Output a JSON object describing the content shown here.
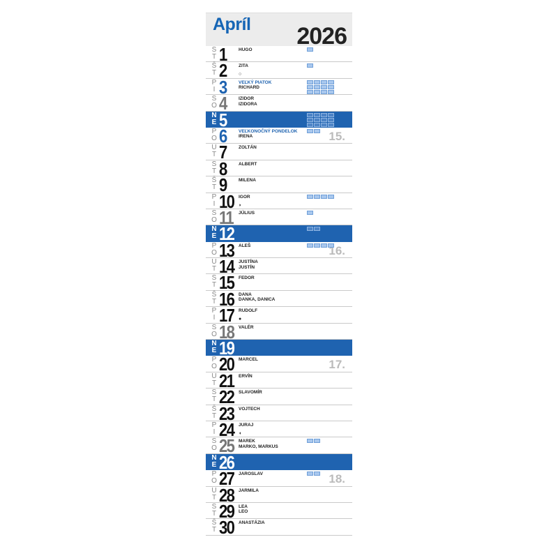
{
  "header": {
    "month": "Apríl",
    "year": "2026"
  },
  "colors": {
    "accent": "#1f63b0",
    "sunday_bg": "#1f63b0"
  },
  "days": [
    {
      "n": "1",
      "d": "ST",
      "names": [
        "HUGO"
      ],
      "badges": 1
    },
    {
      "n": "2",
      "d": "ŠT",
      "names": [
        "ZITA"
      ],
      "moon": "○",
      "badges": 1
    },
    {
      "n": "3",
      "d": "PI",
      "names": [
        "VEĽKÝ PIATOK",
        "RICHARD"
      ],
      "hol": true,
      "badges": 14
    },
    {
      "n": "4",
      "d": "SO",
      "names": [
        "IZIDOR",
        "IZIDORA"
      ]
    },
    {
      "n": "5",
      "d": "NE",
      "names": [],
      "badges": 12
    },
    {
      "n": "6",
      "d": "PO",
      "names": [
        "VEĽKONOČNÝ PONDELOK",
        "IRENA"
      ],
      "hol": true,
      "week": "15.",
      "badges": 2
    },
    {
      "n": "7",
      "d": "UT",
      "names": [
        "ZOLTÁN"
      ]
    },
    {
      "n": "8",
      "d": "ST",
      "names": [
        "ALBERT"
      ]
    },
    {
      "n": "9",
      "d": "ŠT",
      "names": [
        "MILENA"
      ]
    },
    {
      "n": "10",
      "d": "PI",
      "names": [
        "IGOR"
      ],
      "moon": "◗",
      "badges": 4
    },
    {
      "n": "11",
      "d": "SO",
      "names": [
        "JÚLIUS"
      ],
      "badges": 1
    },
    {
      "n": "12",
      "d": "NE",
      "names": [],
      "badges": 2
    },
    {
      "n": "13",
      "d": "PO",
      "names": [
        "ALEŠ"
      ],
      "week": "16.",
      "badges": 4
    },
    {
      "n": "14",
      "d": "UT",
      "names": [
        "JUSTÍNA",
        "JUSTÍN"
      ]
    },
    {
      "n": "15",
      "d": "ST",
      "names": [
        "FEDOR"
      ]
    },
    {
      "n": "16",
      "d": "ŠT",
      "names": [
        "DANA",
        "DANKA, DANICA"
      ]
    },
    {
      "n": "17",
      "d": "PI",
      "names": [
        "RUDOLF"
      ],
      "moon": "●"
    },
    {
      "n": "18",
      "d": "SO",
      "names": [
        "VALÉR"
      ]
    },
    {
      "n": "19",
      "d": "NE",
      "names": []
    },
    {
      "n": "20",
      "d": "PO",
      "names": [
        "MARCEL"
      ],
      "week": "17."
    },
    {
      "n": "21",
      "d": "UT",
      "names": [
        "ERVÍN"
      ]
    },
    {
      "n": "22",
      "d": "ST",
      "names": [
        "SLAVOMÍR"
      ]
    },
    {
      "n": "23",
      "d": "ŠT",
      "names": [
        "VOJTECH"
      ]
    },
    {
      "n": "24",
      "d": "PI",
      "names": [
        "JURAJ"
      ],
      "moon": "◖"
    },
    {
      "n": "25",
      "d": "SO",
      "names": [
        "MAREK",
        "MARKO, MARKUS"
      ],
      "badges": 2
    },
    {
      "n": "26",
      "d": "NE",
      "names": []
    },
    {
      "n": "27",
      "d": "PO",
      "names": [
        "JAROSLAV"
      ],
      "week": "18.",
      "badges": 2
    },
    {
      "n": "28",
      "d": "UT",
      "names": [
        "JARMILA"
      ]
    },
    {
      "n": "29",
      "d": "ST",
      "names": [
        "LEA",
        "LEO"
      ]
    },
    {
      "n": "30",
      "d": "ŠT",
      "names": [
        "ANASTÁZIA"
      ]
    }
  ]
}
